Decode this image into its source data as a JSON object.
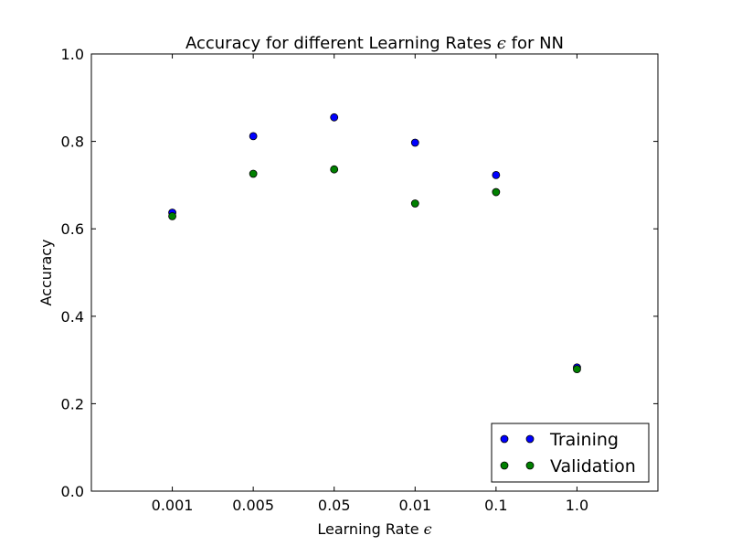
{
  "chart_data": {
    "type": "scatter",
    "title": "Accuracy for different Learning Rates",
    "title_symbol": "ϵ",
    "title_suffix": "for NN",
    "xlabel": "Learning Rate",
    "xlabel_symbol": "ϵ",
    "ylabel": "Accuracy",
    "categories": [
      "0.001",
      "0.005",
      "0.05",
      "0.01",
      "0.1",
      "1.0"
    ],
    "ylim": [
      0.0,
      1.0
    ],
    "yticks": [
      "0.0",
      "0.2",
      "0.4",
      "0.6",
      "0.8",
      "1.0"
    ],
    "grid": false,
    "legend_position": "bottom-right",
    "series": [
      {
        "name": "Training",
        "color": "#0000ff",
        "values": [
          0.637,
          0.812,
          0.855,
          0.797,
          0.723,
          0.283
        ]
      },
      {
        "name": "Validation",
        "color": "#008000",
        "values": [
          0.629,
          0.726,
          0.736,
          0.658,
          0.684,
          0.279
        ]
      }
    ]
  }
}
